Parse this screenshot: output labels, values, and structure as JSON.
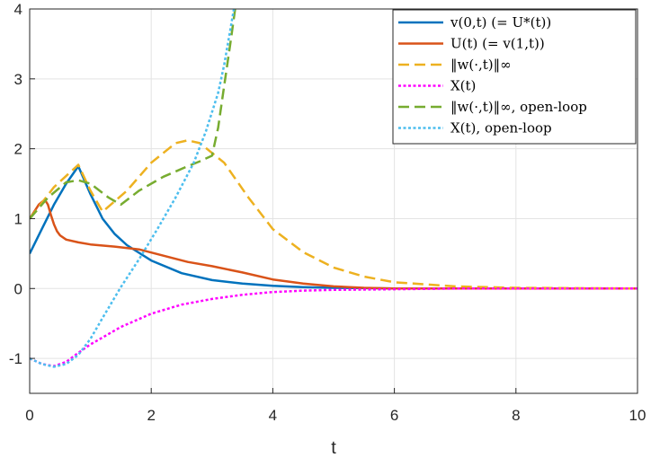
{
  "chart_data": {
    "type": "line",
    "title": "",
    "xlabel": "t",
    "ylabel": "",
    "xlim": [
      0,
      10
    ],
    "ylim": [
      -1.5,
      4
    ],
    "xticks": [
      0,
      2,
      4,
      6,
      8,
      10
    ],
    "yticks": [
      -1,
      0,
      1,
      2,
      3,
      4
    ],
    "xtick_labels": [
      "0",
      "2",
      "4",
      "6",
      "8",
      "10"
    ],
    "ytick_labels": [
      "-1",
      "0",
      "1",
      "2",
      "3",
      "4"
    ],
    "grid": true,
    "legend_position": "top-right",
    "series": [
      {
        "name": "v(0,t)  (= U*(t))",
        "color": "#0072BD",
        "dash": "solid",
        "x": [
          0,
          0.2,
          0.4,
          0.6,
          0.8,
          1.0,
          1.2,
          1.4,
          1.6,
          2.0,
          2.5,
          3.0,
          3.5,
          4.0,
          4.5,
          5.0,
          6.0,
          10.0
        ],
        "y": [
          0.5,
          0.85,
          1.2,
          1.5,
          1.75,
          1.35,
          1.0,
          0.78,
          0.62,
          0.4,
          0.22,
          0.12,
          0.07,
          0.04,
          0.02,
          0.01,
          0.0,
          0.0
        ]
      },
      {
        "name": "U(t)    (= v(1,t))",
        "color": "#D95319",
        "dash": "solid",
        "x": [
          0,
          0.15,
          0.25,
          0.3,
          0.35,
          0.4,
          0.45,
          0.5,
          0.6,
          0.8,
          1.0,
          1.4,
          1.8,
          2.2,
          2.6,
          3.0,
          3.5,
          4.0,
          4.5,
          5.0,
          5.5,
          6.0,
          10.0
        ],
        "y": [
          1.0,
          1.2,
          1.27,
          1.2,
          1.05,
          0.92,
          0.82,
          0.76,
          0.7,
          0.66,
          0.63,
          0.6,
          0.56,
          0.47,
          0.38,
          0.32,
          0.23,
          0.13,
          0.07,
          0.03,
          0.01,
          0.0,
          0.0
        ]
      },
      {
        "name": "‖w(·,t)‖∞",
        "color": "#EDB120",
        "dash": "dashed",
        "x": [
          0,
          0.4,
          0.8,
          1.0,
          1.2,
          1.6,
          2.0,
          2.4,
          2.6,
          2.8,
          3.2,
          3.6,
          4.0,
          4.5,
          5.0,
          5.5,
          6.0,
          7.0,
          8.0,
          10.0
        ],
        "y": [
          1.0,
          1.45,
          1.77,
          1.4,
          1.1,
          1.4,
          1.8,
          2.08,
          2.12,
          2.08,
          1.8,
          1.3,
          0.85,
          0.52,
          0.3,
          0.17,
          0.09,
          0.03,
          0.01,
          0.0
        ]
      },
      {
        "name": "X(t)",
        "color": "#FF00FF",
        "dash": "dotted",
        "x": [
          0,
          0.2,
          0.4,
          0.6,
          0.8,
          1.0,
          1.5,
          2.0,
          2.5,
          3.0,
          3.5,
          4.0,
          4.5,
          5.0,
          6.0,
          7.0,
          8.0,
          10.0
        ],
        "y": [
          -1.0,
          -1.08,
          -1.11,
          -1.05,
          -0.92,
          -0.8,
          -0.55,
          -0.36,
          -0.23,
          -0.15,
          -0.09,
          -0.05,
          -0.03,
          -0.02,
          -0.01,
          0.0,
          0.0,
          0.0
        ]
      },
      {
        "name": "‖w(·,t)‖∞, open-loop",
        "color": "#77AC30",
        "dash": "dashed",
        "x": [
          0,
          0.3,
          0.6,
          0.8,
          1.0,
          1.3,
          1.5,
          1.8,
          2.2,
          2.6,
          2.8,
          3.0,
          3.1,
          3.2,
          3.3,
          3.38
        ],
        "y": [
          1.0,
          1.3,
          1.52,
          1.55,
          1.5,
          1.3,
          1.2,
          1.4,
          1.6,
          1.75,
          1.82,
          1.9,
          2.3,
          2.9,
          3.5,
          4.0
        ]
      },
      {
        "name": "X(t), open-loop",
        "color": "#4DBEEE",
        "dash": "dotted",
        "x": [
          0,
          0.2,
          0.4,
          0.6,
          0.8,
          1.0,
          1.2,
          1.5,
          1.8,
          2.1,
          2.4,
          2.7,
          2.9,
          3.1,
          3.2,
          3.3,
          3.36
        ],
        "y": [
          -1.0,
          -1.08,
          -1.12,
          -1.08,
          -0.95,
          -0.72,
          -0.42,
          0.02,
          0.42,
          0.85,
          1.3,
          1.8,
          2.25,
          2.8,
          3.2,
          3.7,
          4.0
        ]
      }
    ]
  }
}
